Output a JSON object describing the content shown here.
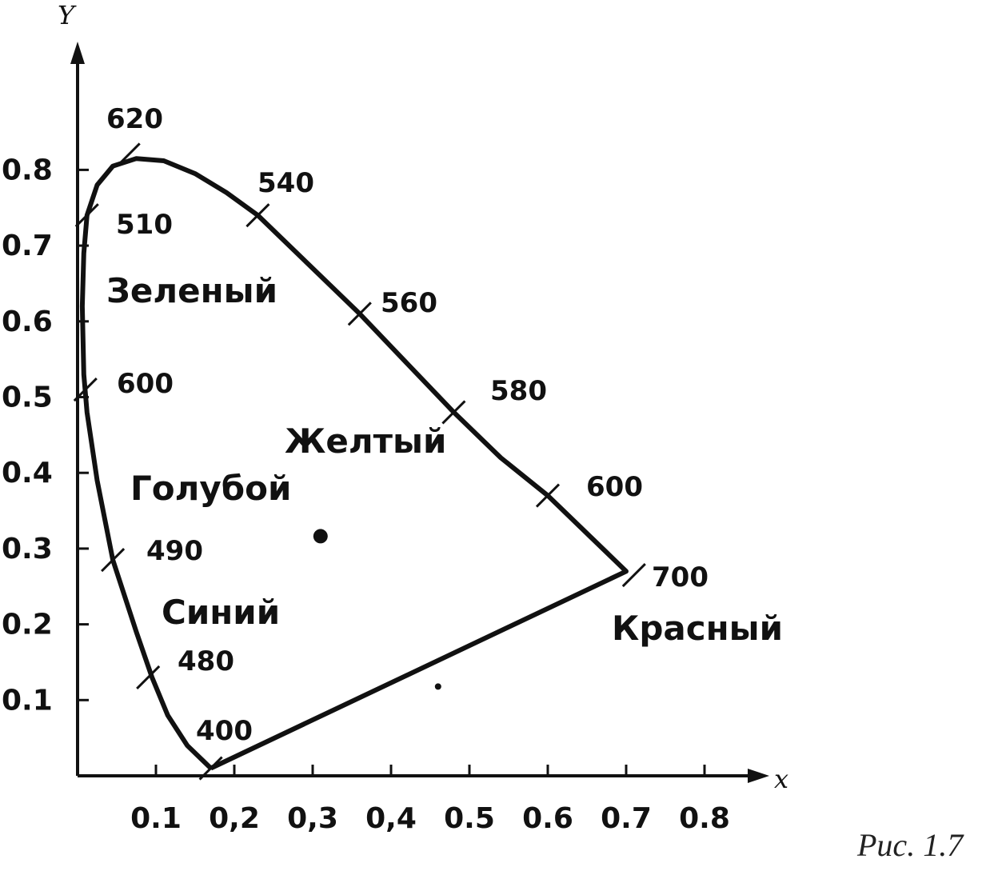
{
  "figure": {
    "caption": "Рис. 1.7",
    "x_axis": {
      "name": "x",
      "ticks": [
        "0.1",
        "0,2",
        "0,3",
        "0,4",
        "0.5",
        "0.6",
        "0.7",
        "0.8"
      ],
      "tick_values": [
        0.1,
        0.2,
        0.3,
        0.4,
        0.5,
        0.6,
        0.7,
        0.8
      ]
    },
    "y_axis": {
      "name": "Y",
      "ticks": [
        "0.1",
        "0.2",
        "0.3",
        "0.4",
        "0.5",
        "0.6",
        "0.7",
        "0.8"
      ],
      "tick_values": [
        0.1,
        0.2,
        0.3,
        0.4,
        0.5,
        0.6,
        0.7,
        0.8
      ]
    },
    "wavelength_marks": [
      {
        "label": "620",
        "x": 0.065,
        "y": 0.82
      },
      {
        "label": "540",
        "x": 0.23,
        "y": 0.74
      },
      {
        "label": "510",
        "x": 0.012,
        "y": 0.74
      },
      {
        "label": "560",
        "x": 0.36,
        "y": 0.61
      },
      {
        "label": "600",
        "x": 0.01,
        "y": 0.51
      },
      {
        "label": "580",
        "x": 0.48,
        "y": 0.48
      },
      {
        "label": "600",
        "x": 0.6,
        "y": 0.37
      },
      {
        "label": "490",
        "x": 0.045,
        "y": 0.285
      },
      {
        "label": "700",
        "x": 0.71,
        "y": 0.265
      },
      {
        "label": "480",
        "x": 0.09,
        "y": 0.13
      },
      {
        "label": "400",
        "x": 0.17,
        "y": 0.01
      }
    ],
    "regions": [
      {
        "label": "Зеленый",
        "x": 0.04,
        "y": 0.66
      },
      {
        "label": "Желтый",
        "x": 0.27,
        "y": 0.46
      },
      {
        "label": "Голубой",
        "x": 0.07,
        "y": 0.39
      },
      {
        "label": "Синий",
        "x": 0.11,
        "y": 0.2
      },
      {
        "label": "Красный",
        "x": 0.68,
        "y": 0.18
      }
    ],
    "white_point": {
      "x": 0.31,
      "y": 0.31
    },
    "stray_dot": {
      "x": 0.46,
      "y": 0.12
    },
    "locus": [
      [
        0.17,
        0.01
      ],
      [
        0.14,
        0.04
      ],
      [
        0.115,
        0.08
      ],
      [
        0.095,
        0.13
      ],
      [
        0.075,
        0.19
      ],
      [
        0.045,
        0.285
      ],
      [
        0.025,
        0.39
      ],
      [
        0.012,
        0.48
      ],
      [
        0.008,
        0.53
      ],
      [
        0.006,
        0.62
      ],
      [
        0.008,
        0.69
      ],
      [
        0.012,
        0.74
      ],
      [
        0.025,
        0.78
      ],
      [
        0.045,
        0.805
      ],
      [
        0.075,
        0.815
      ],
      [
        0.11,
        0.812
      ],
      [
        0.15,
        0.795
      ],
      [
        0.19,
        0.77
      ],
      [
        0.23,
        0.74
      ],
      [
        0.29,
        0.68
      ],
      [
        0.36,
        0.61
      ],
      [
        0.42,
        0.545
      ],
      [
        0.48,
        0.48
      ],
      [
        0.54,
        0.42
      ],
      [
        0.6,
        0.37
      ],
      [
        0.655,
        0.315
      ],
      [
        0.7,
        0.27
      ],
      [
        0.17,
        0.01
      ]
    ]
  }
}
